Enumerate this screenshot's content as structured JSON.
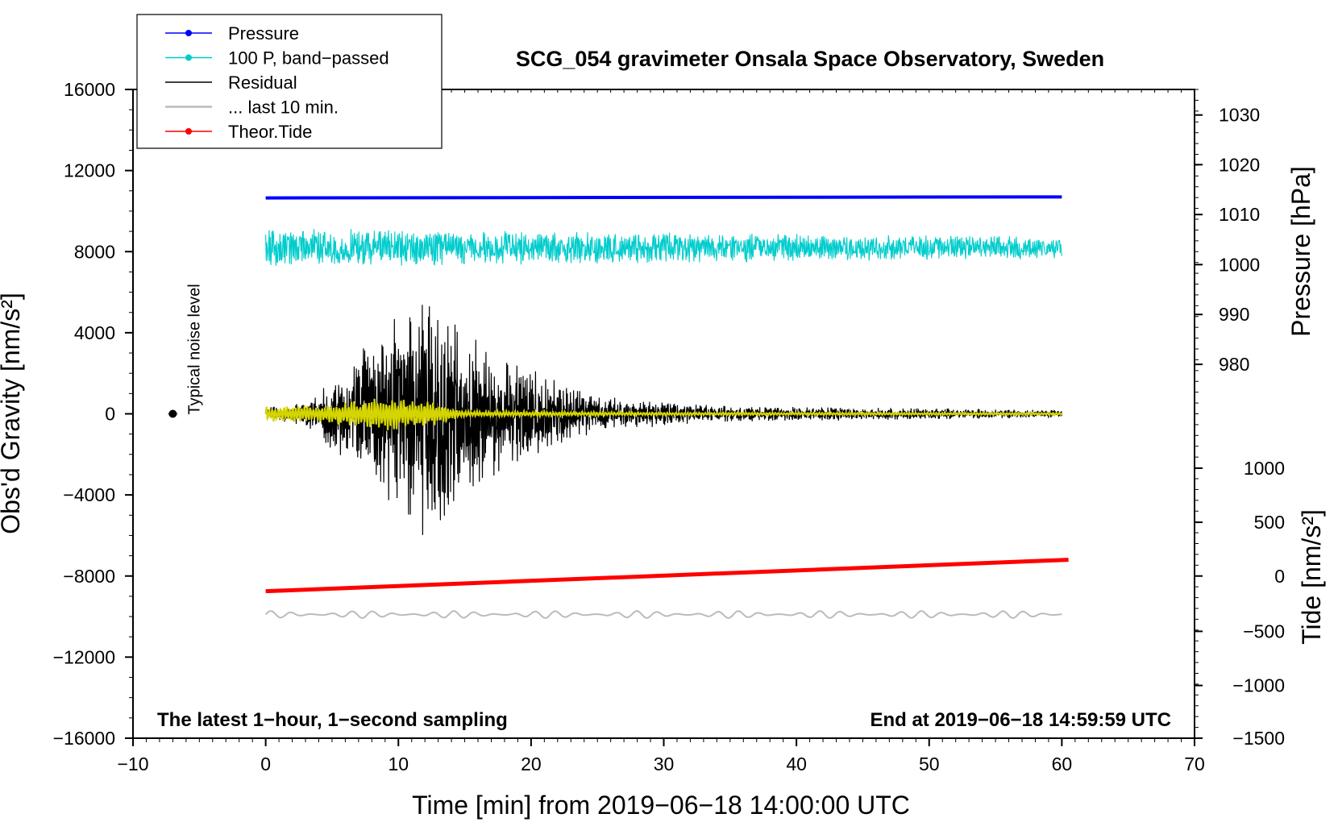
{
  "chart_data": {
    "type": "line",
    "title": "SCG_054 gravimeter Onsala Space Observatory, Sweden",
    "xlabel": "Time [min] from 2019−06−18 14:00:00 UTC",
    "ylabel_left": "Obs'd Gravity [nm/s²]",
    "ylabel_right_pressure": "Pressure [hPa]",
    "ylabel_right_tide": "Tide [nm/s²]",
    "xlim": [
      -10,
      70
    ],
    "ylim_left": [
      -16000,
      16000
    ],
    "x_ticks": [
      "−10",
      "0",
      "10",
      "20",
      "30",
      "40",
      "50",
      "60",
      "70"
    ],
    "y_ticks_left": [
      "16000",
      "12000",
      "8000",
      "4000",
      "0",
      "−4000",
      "−8000",
      "−12000",
      "−16000"
    ],
    "y_ticks_pressure": [
      "1030",
      "1020",
      "1010",
      "1000",
      "990",
      "980"
    ],
    "pressure_ticks_gravity_equiv": [
      14740,
      12290,
      9830,
      7360,
      4900,
      2440
    ],
    "y_ticks_tide": [
      "1000",
      "500",
      "0",
      "−500",
      "−1000",
      "−1500"
    ],
    "tide_ticks_gravity_equiv": [
      -2680,
      -5350,
      -8000,
      -10730,
      -13400,
      -16000
    ],
    "legend_position": "top-left",
    "legend": [
      {
        "label": "Pressure",
        "color": "#0000ff",
        "marker": "dot"
      },
      {
        "label": "100 P, band−passed",
        "color": "#00cccc",
        "marker": "dot"
      },
      {
        "label": "Residual",
        "color": "#000000",
        "marker": "none"
      },
      {
        "label": "... last 10 min.",
        "color": "#bbbbbb",
        "marker": "none"
      },
      {
        "label": "Theor.Tide",
        "color": "#ff0000",
        "marker": "dot"
      }
    ],
    "series": [
      {
        "name": "Pressure",
        "color": "#0000ff",
        "x": [
          0,
          60
        ],
        "values": [
          10650,
          10700
        ],
        "pressure_hPa": [
          1013.2,
          1013.4
        ],
        "note": "nearly constant, plotted in gravity units offset"
      },
      {
        "name": "100 P, band-passed",
        "color": "#00cccc",
        "x_range": [
          0,
          60
        ],
        "center": 8200,
        "amplitude_max": 1800,
        "note": "noisy oscillation around 8200"
      },
      {
        "name": "Residual",
        "color": "#000000",
        "x_range": [
          0,
          60
        ],
        "center": 0,
        "envelope": [
          [
            0,
            300
          ],
          [
            3,
            600
          ],
          [
            6,
            2500
          ],
          [
            9,
            4400
          ],
          [
            12,
            6200
          ],
          [
            15,
            4600
          ],
          [
            18,
            2800
          ],
          [
            22,
            1700
          ],
          [
            25,
            900
          ],
          [
            30,
            600
          ],
          [
            35,
            400
          ],
          [
            60,
            200
          ]
        ],
        "note": "earthquake signal peaking near minute 12"
      },
      {
        "name": "... last 10 min.",
        "color": "#bbbbbb",
        "x_range": [
          0,
          60
        ],
        "center": -9900,
        "amplitude_max": 320
      },
      {
        "name": "Theor.Tide",
        "color": "#ff0000",
        "x": [
          0,
          60.5
        ],
        "values": [
          -8750,
          -7200
        ],
        "tide_nm_s2": [
          -120,
          135
        ]
      },
      {
        "name": "Filtered residual",
        "color": "#d4d400",
        "x_range": [
          0,
          60
        ],
        "center": 0,
        "envelope": [
          [
            0,
            400
          ],
          [
            5,
            500
          ],
          [
            9,
            1000
          ],
          [
            12,
            800
          ],
          [
            15,
            150
          ],
          [
            30,
            80
          ],
          [
            60,
            60
          ]
        ]
      }
    ],
    "annotations": {
      "noise_label": "Typical noise level",
      "noise_x": -7,
      "noise_y": 0,
      "bottom_left_note": "The latest 1−hour, 1−second sampling",
      "bottom_right_note": "End at 2019−06−18 14:59:59 UTC"
    }
  }
}
